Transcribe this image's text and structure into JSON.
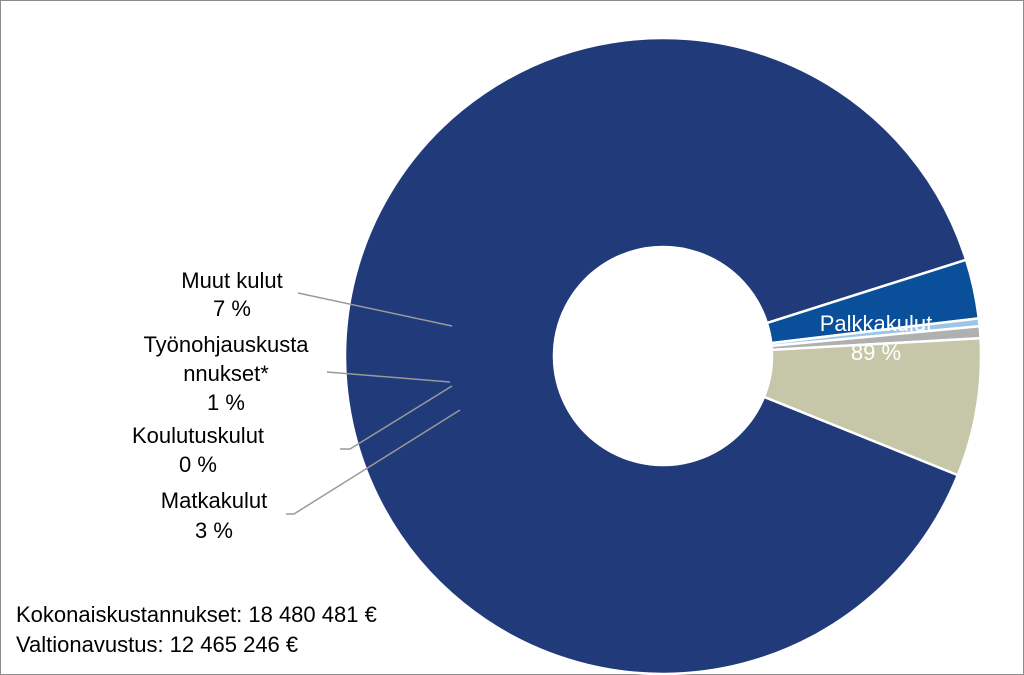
{
  "chart_data": {
    "type": "pie",
    "variant": "donut",
    "slices": [
      {
        "id": "palkkakulut",
        "label": "Palkkakulut",
        "percent_label": "89 %",
        "value": 89,
        "color": "#203a7a"
      },
      {
        "id": "matkakulut",
        "label": "Matkakulut",
        "percent_label": "3 %",
        "value": 3,
        "color": "#0a4f9a"
      },
      {
        "id": "koulutuskulut",
        "label": "Koulutuskulut",
        "percent_label": "0 %",
        "value": 0.4,
        "color": "#9cc6e8"
      },
      {
        "id": "tyonohjaus",
        "label_lines": [
          "Työnohjauskusta",
          "nnukset*"
        ],
        "percent_label": "1 %",
        "value": 0.6,
        "color": "#b0b0b0"
      },
      {
        "id": "muut",
        "label": "Muut kulut",
        "percent_label": "7 %",
        "value": 7,
        "color": "#c5c7a8"
      }
    ],
    "legend": "none"
  },
  "footnotes": {
    "line1": "Kokonaiskustannukset: 18 480 481 €",
    "line2": "Valtionavustus: 12 465 246 €"
  }
}
